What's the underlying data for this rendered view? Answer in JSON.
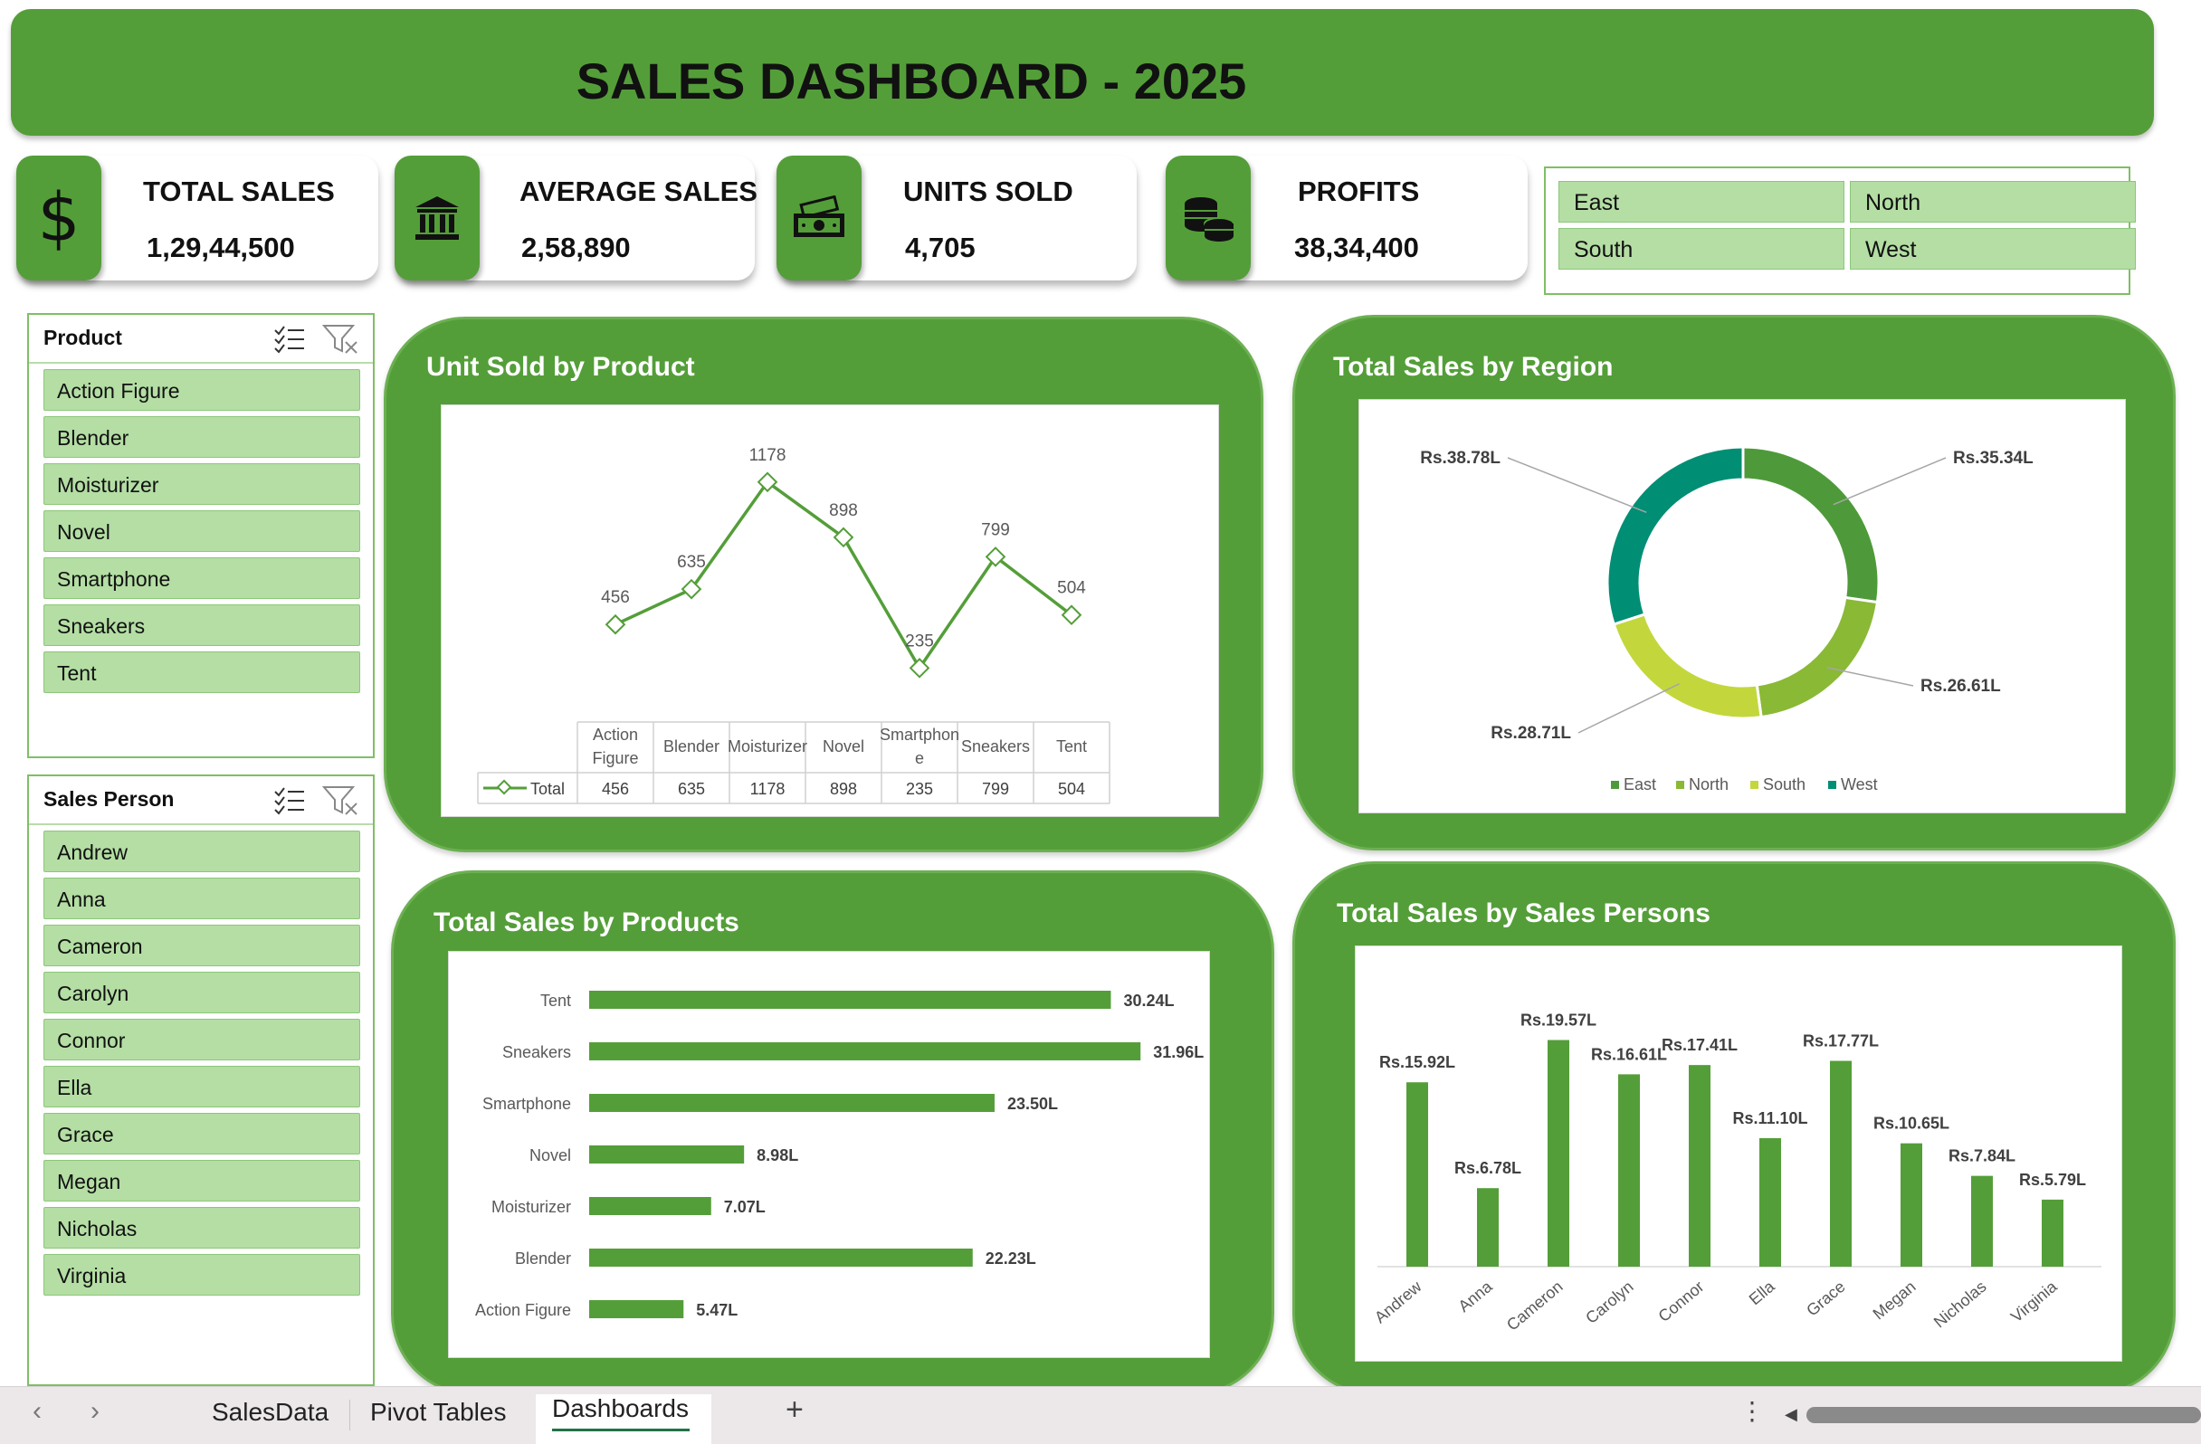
{
  "header": {
    "title": "SALES DASHBOARD - 2025"
  },
  "kpis": [
    {
      "label": "TOTAL SALES",
      "value": "1,29,44,500",
      "icon": "dollar-icon"
    },
    {
      "label": "AVERAGE SALES",
      "value": "2,58,890",
      "icon": "bank-icon"
    },
    {
      "label": "UNITS SOLD",
      "value": "4,705",
      "icon": "cash-icon"
    },
    {
      "label": "PROFITS",
      "value": "38,34,400",
      "icon": "coins-icon"
    }
  ],
  "region_slicer": {
    "items": [
      "East",
      "North",
      "South",
      "West"
    ]
  },
  "product_slicer": {
    "title": "Product",
    "items": [
      "Action Figure",
      "Blender",
      "Moisturizer",
      "Novel",
      "Smartphone",
      "Sneakers",
      "Tent"
    ]
  },
  "salesperson_slicer": {
    "title": "Sales Person",
    "items": [
      "Andrew",
      "Anna",
      "Cameron",
      "Carolyn",
      "Connor",
      "Ella",
      "Grace",
      "Megan",
      "Nicholas",
      "Virginia"
    ]
  },
  "charts": {
    "units_by_product": {
      "title": "Unit Sold by Product"
    },
    "sales_by_region": {
      "title": "Total Sales by Region"
    },
    "sales_by_products": {
      "title": "Total Sales by Products"
    },
    "sales_by_persons": {
      "title": "Total Sales by Sales Persons"
    }
  },
  "chart_data": [
    {
      "type": "line",
      "title": "Unit Sold by Product",
      "categories": [
        "Action Figure",
        "Blender",
        "Moisturizer",
        "Novel",
        "Smartphone",
        "Sneakers",
        "Tent"
      ],
      "category_table_labels": [
        "Action\nFigure",
        "Blender",
        "Moisturizer",
        "Novel",
        "Smartphon\ne",
        "Sneakers",
        "Tent"
      ],
      "series": [
        {
          "name": "Total",
          "values": [
            456,
            635,
            1178,
            898,
            235,
            799,
            504
          ]
        }
      ],
      "color": "#549e39",
      "data_table": true
    },
    {
      "type": "pie",
      "title": "Total Sales by Region",
      "donut": true,
      "categories": [
        "East",
        "North",
        "South",
        "West"
      ],
      "values": [
        35.34,
        26.61,
        28.71,
        38.78
      ],
      "labels": [
        "Rs.35.34L",
        "Rs.26.61L",
        "Rs.28.71L",
        "Rs.38.78L"
      ],
      "colors": [
        "#4e9a3a",
        "#8ab936",
        "#c3d73c",
        "#008e74"
      ],
      "legend": "bottom"
    },
    {
      "type": "bar",
      "orientation": "horizontal",
      "title": "Total Sales by Products",
      "categories": [
        "Tent",
        "Sneakers",
        "Smartphone",
        "Novel",
        "Moisturizer",
        "Blender",
        "Action Figure"
      ],
      "values": [
        30.24,
        31.96,
        23.5,
        8.98,
        7.07,
        22.23,
        5.47
      ],
      "labels": [
        "30.24L",
        "31.96L",
        "23.50L",
        "8.98L",
        "7.07L",
        "22.23L",
        "5.47L"
      ],
      "color": "#549e39"
    },
    {
      "type": "bar",
      "title": "Total Sales by Sales Persons",
      "categories": [
        "Andrew",
        "Anna",
        "Cameron",
        "Carolyn",
        "Connor",
        "Ella",
        "Grace",
        "Megan",
        "Nicholas",
        "Virginia"
      ],
      "values": [
        15.92,
        6.78,
        19.57,
        16.61,
        17.41,
        11.1,
        17.77,
        10.65,
        7.84,
        5.79
      ],
      "labels": [
        "Rs.15.92L",
        "Rs.6.78L",
        "Rs.19.57L",
        "Rs.16.61L",
        "Rs.17.41L",
        "Rs.11.10L",
        "Rs.17.77L",
        "Rs.10.65L",
        "Rs.7.84L",
        "Rs.5.79L"
      ],
      "color": "#549e39"
    }
  ],
  "tabbar": {
    "tabs": [
      "SalesData",
      "Pivot Tables",
      "Dashboards"
    ],
    "active": "Dashboards",
    "add_label": "+",
    "more_label": "⋮"
  }
}
